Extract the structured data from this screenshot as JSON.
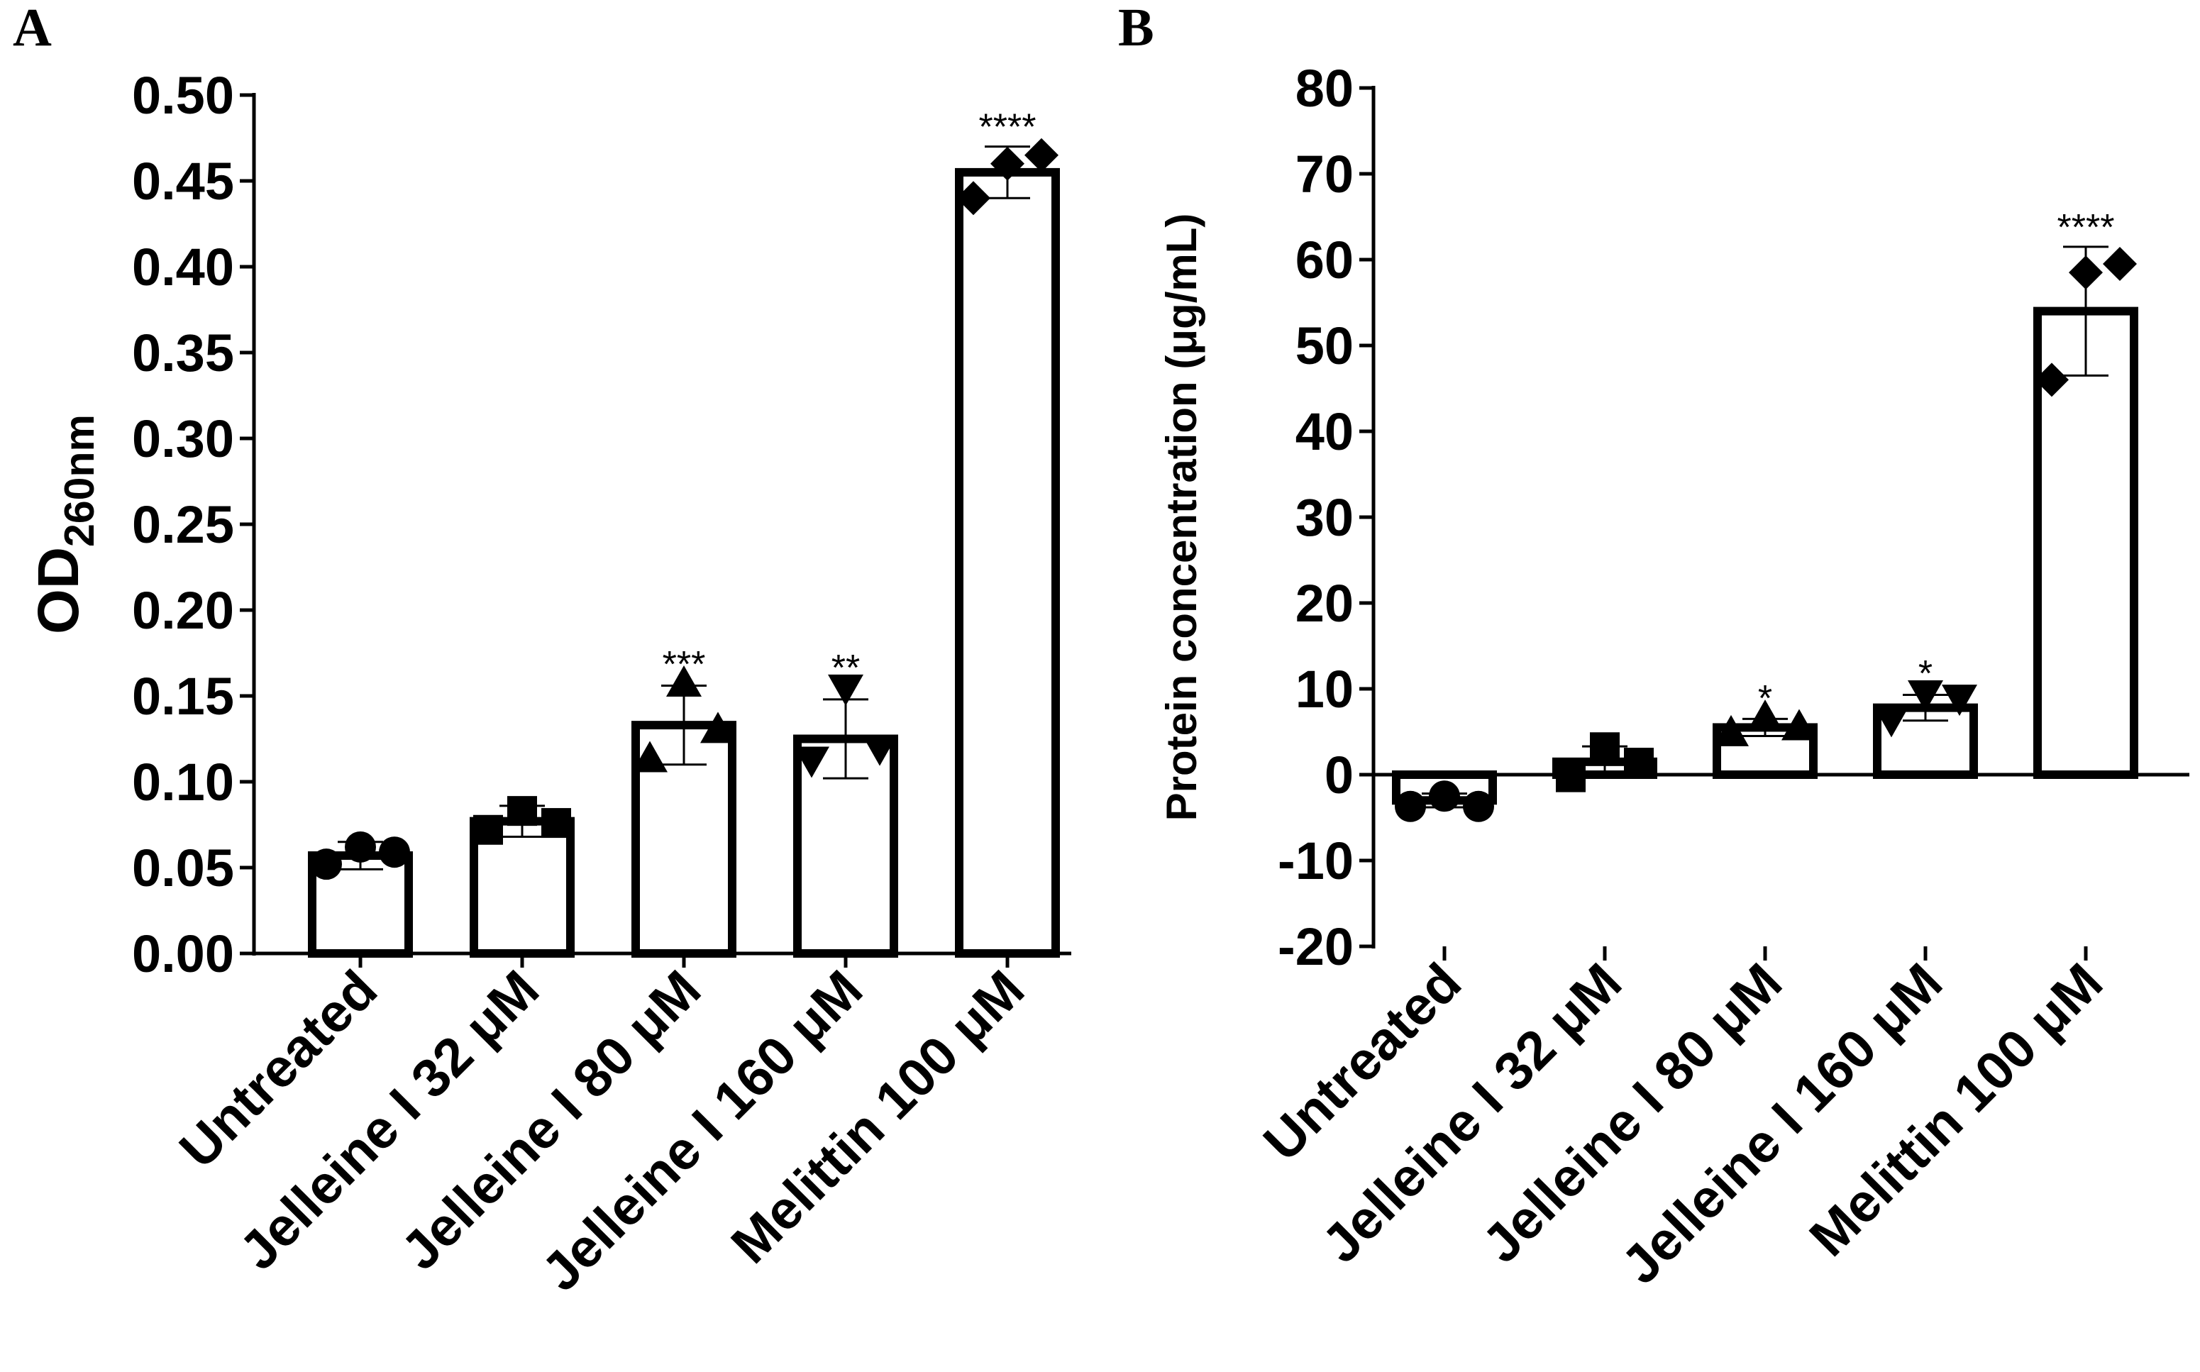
{
  "panels": [
    {
      "letter": "A"
    },
    {
      "letter": "B"
    }
  ],
  "chart_data": [
    {
      "type": "bar",
      "panel": "A",
      "title": "",
      "ylabel": "OD",
      "ylabel_subscript": "260nm",
      "ylim": [
        0,
        0.5
      ],
      "yticks": [
        0.0,
        0.05,
        0.1,
        0.15,
        0.2,
        0.25,
        0.3,
        0.35,
        0.4,
        0.45,
        0.5
      ],
      "ytick_labels": [
        "0.00",
        "0.05",
        "0.10",
        "0.15",
        "0.20",
        "0.25",
        "0.30",
        "0.35",
        "0.40",
        "0.45",
        "0.50"
      ],
      "categories": [
        "Untreated",
        "Jelleine I 32 μM",
        "Jelleine I 80 μM",
        "Jelleine I 160 μM",
        "Melittin 100 μM"
      ],
      "values": [
        0.057,
        0.077,
        0.133,
        0.125,
        0.455
      ],
      "error": [
        0.008,
        0.009,
        0.023,
        0.023,
        0.015
      ],
      "points": [
        [
          0.052,
          0.062,
          0.059
        ],
        [
          0.072,
          0.083,
          0.076
        ],
        [
          0.113,
          0.157,
          0.13
        ],
        [
          0.113,
          0.155,
          0.12
        ],
        [
          0.44,
          0.46,
          0.465
        ]
      ],
      "markers": [
        "circle",
        "square",
        "triangle-up",
        "triangle-down",
        "diamond"
      ],
      "significance": [
        "",
        "",
        "***",
        "**",
        "****"
      ]
    },
    {
      "type": "bar",
      "panel": "B",
      "title": "",
      "ylabel": "Protein concentration (μg/mL)",
      "ylim": [
        -20,
        80
      ],
      "yticks": [
        -20,
        -10,
        0,
        10,
        20,
        30,
        40,
        50,
        60,
        70,
        80
      ],
      "ytick_labels": [
        "-20",
        "-10",
        "0",
        "10",
        "20",
        "30",
        "40",
        "50",
        "60",
        "70",
        "80"
      ],
      "categories": [
        "Untreated",
        "Jelleine I 32 μM",
        "Jelleine I 80 μM",
        "Jelleine I 160 μM",
        "Melittin 100 μM"
      ],
      "values": [
        -3.0,
        1.5,
        5.5,
        7.8,
        54.0
      ],
      "error": [
        0.8,
        1.8,
        1.0,
        1.5,
        7.5
      ],
      "points": [
        [
          -3.7,
          -2.5,
          -3.7
        ],
        [
          -0.3,
          3.2,
          1.4
        ],
        [
          4.8,
          6.6,
          5.5
        ],
        [
          6.5,
          9.5,
          9.0
        ],
        [
          46.0,
          58.5,
          59.5
        ]
      ],
      "markers": [
        "circle",
        "square",
        "triangle-up",
        "triangle-down",
        "diamond"
      ],
      "significance": [
        "",
        "",
        "*",
        "*",
        "****"
      ]
    }
  ]
}
